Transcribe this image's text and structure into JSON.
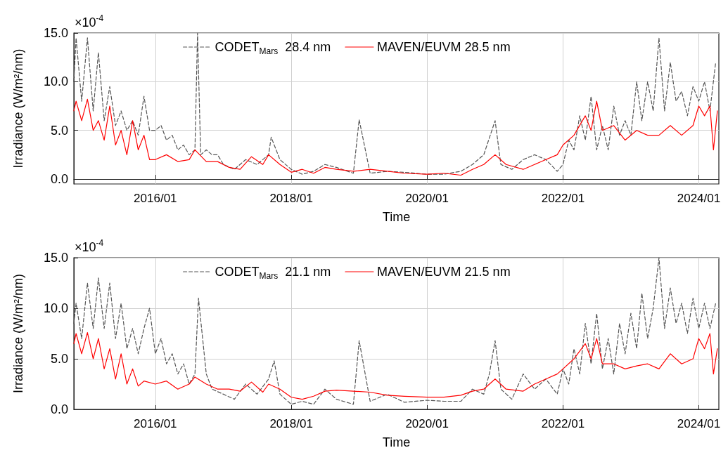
{
  "chart_data": [
    {
      "type": "line",
      "xlabel": "Time",
      "ylabel": "Irradiance (W/m²/nm)",
      "annotations": [
        "×10$^{-4}$"
      ],
      "xlim": [
        "2014-10-20",
        "2024-04-18"
      ],
      "xticks": [
        {
          "value": "2016-01",
          "label": "2016/01"
        },
        {
          "value": "2018-01",
          "label": "2018/01"
        },
        {
          "value": "2020-01",
          "label": "2020/01"
        },
        {
          "value": "2022-01",
          "label": "2022/01"
        },
        {
          "value": "2024-01",
          "label": "2024/01"
        }
      ],
      "ylim": [
        -0.5,
        15
      ],
      "yticks": [
        {
          "value": 0,
          "label": "0.0"
        },
        {
          "value": 5,
          "label": "5.0"
        },
        {
          "value": 10,
          "label": "10.0"
        },
        {
          "value": 15,
          "label": "15.0"
        }
      ],
      "grid": true,
      "legend": "top",
      "marker": "none",
      "series": [
        {
          "name": "CODET$_{Mars}$  28.4 nm",
          "color": "#555555",
          "line_style": "dashed",
          "x": [
            "2014-10-20",
            "2014-11",
            "2014-12",
            "2015-01",
            "2015-02",
            "2015-03",
            "2015-04",
            "2015-05",
            "2015-06",
            "2015-07",
            "2015-08",
            "2015-09",
            "2015-10",
            "2015-11",
            "2015-12",
            "2016-01",
            "2016-02",
            "2016-03",
            "2016-04",
            "2016-05",
            "2016-06",
            "2016-07",
            "2016-08",
            "2016-08-15",
            "2016-09",
            "2016-10",
            "2016-11",
            "2016-12",
            "2017-01",
            "2017-03",
            "2017-05",
            "2017-07",
            "2017-09",
            "2017-09-15",
            "2017-11",
            "2018-01",
            "2018-03",
            "2018-05",
            "2018-07",
            "2018-09",
            "2018-12",
            "2019-01-01",
            "2019-03",
            "2019-06",
            "2019-09",
            "2020-01",
            "2020-04",
            "2020-07",
            "2020-09",
            "2020-11",
            "2021-01",
            "2021-02",
            "2021-04",
            "2021-06",
            "2021-08",
            "2021-10",
            "2021-12",
            "2022-01",
            "2022-02",
            "2022-03",
            "2022-04",
            "2022-05",
            "2022-06",
            "2022-07",
            "2022-08",
            "2022-09",
            "2022-10",
            "2022-11",
            "2022-12",
            "2023-01",
            "2023-02",
            "2023-03",
            "2023-04",
            "2023-05",
            "2023-06",
            "2023-07",
            "2023-08",
            "2023-09",
            "2023-10",
            "2023-11",
            "2023-12",
            "2024-01",
            "2024-02",
            "2024-03",
            "2024-04"
          ],
          "values": [
            10,
            14.5,
            8,
            14.5,
            7,
            13,
            6,
            9.5,
            5.5,
            7,
            5,
            6,
            4.5,
            8.5,
            5,
            5,
            5.5,
            4,
            4.5,
            3,
            3.5,
            2.5,
            3,
            15,
            2.5,
            3,
            2.5,
            2.5,
            1.5,
            1,
            2,
            1.5,
            2.5,
            4.3,
            2,
            1,
            0.5,
            0.8,
            1.5,
            1.2,
            0.6,
            6.1,
            0.6,
            0.8,
            0.7,
            0.5,
            0.5,
            0.8,
            1.5,
            2.5,
            6,
            1.5,
            1,
            2,
            2.5,
            2,
            0.8,
            1.5,
            4,
            3,
            6.5,
            4,
            8.5,
            3,
            5.5,
            3,
            7.5,
            4.5,
            6,
            4.5,
            10,
            6,
            10,
            7,
            14.5,
            7,
            12,
            8,
            9,
            6.5,
            9.5,
            8,
            10,
            7,
            12
          ]
        },
        {
          "name": "MAVEN/EUVM 28.5 nm",
          "color": "#ff0000",
          "line_style": "solid",
          "x": [
            "2014-10-20",
            "2014-11",
            "2014-12",
            "2015-01",
            "2015-02",
            "2015-03",
            "2015-04",
            "2015-05",
            "2015-06",
            "2015-07",
            "2015-08",
            "2015-09",
            "2015-10",
            "2015-11",
            "2015-12",
            "2016-01",
            "2016-03",
            "2016-05",
            "2016-07",
            "2016-08",
            "2016-10",
            "2016-12",
            "2017-02",
            "2017-04",
            "2017-06",
            "2017-08",
            "2017-09",
            "2017-11",
            "2018-01",
            "2018-03",
            "2018-05",
            "2018-07",
            "2018-09",
            "2018-12",
            "2019-03",
            "2019-06",
            "2019-09",
            "2020-01",
            "2020-04",
            "2020-07",
            "2020-09",
            "2020-11",
            "2021-01",
            "2021-03",
            "2021-06",
            "2021-08",
            "2021-10",
            "2021-12",
            "2022-01",
            "2022-03",
            "2022-05",
            "2022-06",
            "2022-07",
            "2022-08",
            "2022-10",
            "2022-12",
            "2023-02",
            "2023-04",
            "2023-06",
            "2023-08",
            "2023-10",
            "2023-12",
            "2024-01",
            "2024-02",
            "2024-03",
            "2024-03-20",
            "2024-04-10"
          ],
          "values": [
            7,
            8,
            6,
            8.2,
            5,
            6,
            4,
            7.5,
            3.5,
            5,
            2.5,
            6,
            3,
            4.5,
            2,
            2,
            2.5,
            1.8,
            2,
            3,
            1.8,
            1.8,
            1.2,
            1,
            2.3,
            1.5,
            2.5,
            1.5,
            0.7,
            1,
            0.6,
            1.2,
            1,
            0.8,
            1,
            0.8,
            0.6,
            0.5,
            0.6,
            0.4,
            1,
            1.5,
            2.5,
            1.5,
            1,
            1.5,
            2,
            2.5,
            3.5,
            4.5,
            6.5,
            5,
            8,
            5,
            5.5,
            4,
            5,
            4.5,
            4.5,
            5.5,
            4.5,
            5.5,
            7.5,
            6.5,
            7.5,
            3,
            7
          ]
        }
      ]
    },
    {
      "type": "line",
      "xlabel": "Time",
      "ylabel": "Irradiance (W/m²/nm)",
      "annotations": [
        "×10$^{-4}$"
      ],
      "xlim": [
        "2014-10-20",
        "2024-04-18"
      ],
      "xticks": [
        {
          "value": "2016-01",
          "label": "2016/01"
        },
        {
          "value": "2018-01",
          "label": "2018/01"
        },
        {
          "value": "2020-01",
          "label": "2020/01"
        },
        {
          "value": "2022-01",
          "label": "2022/01"
        },
        {
          "value": "2024-01",
          "label": "2024/01"
        }
      ],
      "ylim": [
        0,
        15
      ],
      "yticks": [
        {
          "value": 0,
          "label": "0.0"
        },
        {
          "value": 5,
          "label": "5.0"
        },
        {
          "value": 10,
          "label": "10.0"
        },
        {
          "value": 15,
          "label": "15.0"
        }
      ],
      "grid": true,
      "legend": "top",
      "marker": "none",
      "series": [
        {
          "name": "CODET$_{Mars}$  21.1 nm",
          "color": "#555555",
          "line_style": "dashed",
          "x": [
            "2014-10-20",
            "2014-11",
            "2014-12",
            "2015-01",
            "2015-02",
            "2015-03",
            "2015-04",
            "2015-05",
            "2015-06",
            "2015-07",
            "2015-08",
            "2015-09",
            "2015-10",
            "2015-11",
            "2015-12",
            "2016-01",
            "2016-02",
            "2016-03",
            "2016-04",
            "2016-05",
            "2016-06",
            "2016-07",
            "2016-08",
            "2016-08-20",
            "2016-10",
            "2016-11",
            "2017-01",
            "2017-03",
            "2017-05",
            "2017-07",
            "2017-09",
            "2017-10",
            "2017-11",
            "2018-01",
            "2018-03",
            "2018-05",
            "2018-07",
            "2018-09",
            "2018-12",
            "2019-01-01",
            "2019-03",
            "2019-06",
            "2019-09",
            "2020-01",
            "2020-04",
            "2020-07",
            "2020-09",
            "2020-11",
            "2020-12",
            "2021-01",
            "2021-02",
            "2021-04",
            "2021-06",
            "2021-08",
            "2021-10",
            "2021-12",
            "2022-01",
            "2022-02",
            "2022-03",
            "2022-04",
            "2022-05",
            "2022-06",
            "2022-07",
            "2022-08",
            "2022-09",
            "2022-10",
            "2022-11",
            "2022-12",
            "2023-01",
            "2023-02",
            "2023-03",
            "2023-04",
            "2023-05",
            "2023-06",
            "2023-07",
            "2023-08",
            "2023-09",
            "2023-10",
            "2023-11",
            "2023-12",
            "2024-01",
            "2024-02",
            "2024-03",
            "2024-04"
          ],
          "values": [
            8.5,
            10.5,
            7,
            12.5,
            8,
            13,
            8,
            12.5,
            7,
            10.5,
            6,
            8,
            5.5,
            8,
            10,
            5.5,
            7,
            4.5,
            5.5,
            3.5,
            4.5,
            2.5,
            3.5,
            11,
            3.5,
            2,
            1.5,
            1,
            2.5,
            1.5,
            3,
            4.8,
            1.5,
            0.5,
            0.8,
            0.5,
            2,
            1,
            0.5,
            6.8,
            0.8,
            1.5,
            0.7,
            0.9,
            0.8,
            0.8,
            2,
            1.5,
            3.5,
            6.8,
            2,
            1,
            3.5,
            2,
            3,
            1.5,
            4,
            2.5,
            6,
            3.5,
            8.5,
            4.5,
            9.5,
            4,
            7,
            3.5,
            8.5,
            5.5,
            9.5,
            6,
            11.5,
            7,
            10,
            15,
            8,
            12,
            8.5,
            10.5,
            7.5,
            11,
            8,
            10.5,
            8,
            10.5
          ]
        },
        {
          "name": "MAVEN/EUVM 21.5 nm",
          "color": "#ff0000",
          "line_style": "solid",
          "x": [
            "2014-10-20",
            "2014-11",
            "2014-12",
            "2015-01",
            "2015-02",
            "2015-03",
            "2015-04",
            "2015-05",
            "2015-06",
            "2015-07",
            "2015-08",
            "2015-09",
            "2015-10",
            "2015-11",
            "2016-01",
            "2016-03",
            "2016-05",
            "2016-07",
            "2016-08",
            "2016-10",
            "2016-12",
            "2017-02",
            "2017-04",
            "2017-06",
            "2017-08",
            "2017-09",
            "2017-11",
            "2018-01",
            "2018-03",
            "2018-05",
            "2018-07",
            "2018-09",
            "2018-12",
            "2019-03",
            "2019-06",
            "2019-09",
            "2020-01",
            "2020-04",
            "2020-07",
            "2020-09",
            "2020-11",
            "2021-01",
            "2021-03",
            "2021-06",
            "2021-08",
            "2021-10",
            "2021-12",
            "2022-01",
            "2022-03",
            "2022-05",
            "2022-06",
            "2022-07",
            "2022-08",
            "2022-10",
            "2022-12",
            "2023-02",
            "2023-04",
            "2023-06",
            "2023-08",
            "2023-10",
            "2023-12",
            "2024-01",
            "2024-02",
            "2024-03",
            "2024-03-20",
            "2024-04-10"
          ],
          "values": [
            6.5,
            7.5,
            5.5,
            7.6,
            5,
            7,
            4,
            6,
            3,
            5.5,
            2.5,
            4,
            2.3,
            2.8,
            2.5,
            2.8,
            2,
            2.5,
            3.2,
            2.5,
            2,
            2,
            1.8,
            2.7,
            1.7,
            2.5,
            2,
            1.2,
            1,
            1.3,
            1.8,
            1.9,
            1.8,
            1.7,
            1.4,
            1.3,
            1.2,
            1.2,
            1.4,
            1.8,
            2,
            3,
            2,
            1.8,
            2.5,
            3,
            3.5,
            4,
            5,
            6.5,
            5,
            7,
            4.5,
            4.5,
            4,
            4.3,
            4.5,
            4,
            5.5,
            4.5,
            5,
            7,
            6,
            7.5,
            3.5,
            6
          ]
        }
      ]
    }
  ]
}
